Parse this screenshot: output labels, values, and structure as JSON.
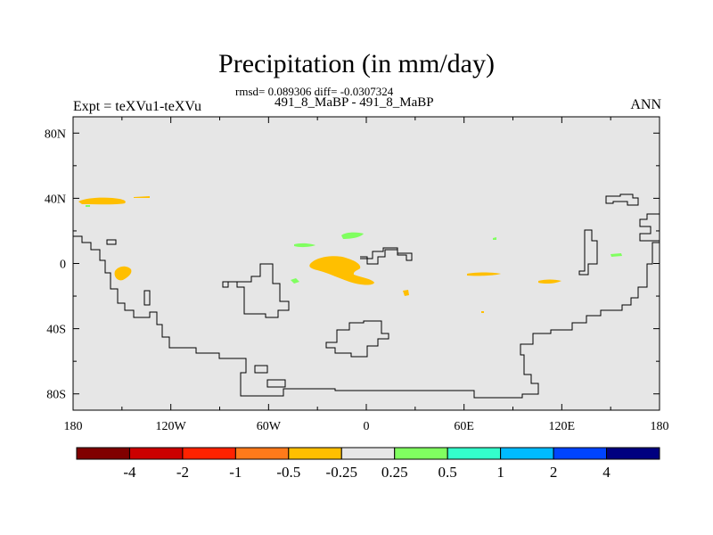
{
  "title": "Precipitation (in mm/day)",
  "stats": "rmsd= 0.089306 diff= -0.0307324",
  "subtitle": "491_8_MaBP - 491_8_MaBP",
  "experiment": "Expt = teXVu1-teXVu",
  "season": "ANN",
  "colors": {
    "land_background": "#e6e6e6",
    "orange_anomaly": "#ffbf00",
    "green_anomaly": "#80ff60",
    "coastline": "#000000"
  },
  "map": {
    "x_ticks": [
      {
        "lon": -180,
        "label": "180"
      },
      {
        "lon": -120,
        "label": "120W"
      },
      {
        "lon": -60,
        "label": "60W"
      },
      {
        "lon": 0,
        "label": "0"
      },
      {
        "lon": 60,
        "label": "60E"
      },
      {
        "lon": 120,
        "label": "120E"
      },
      {
        "lon": 180,
        "label": "180"
      }
    ],
    "y_ticks": [
      {
        "lat": 80,
        "label": "80N"
      },
      {
        "lat": 40,
        "label": "40N"
      },
      {
        "lat": 0,
        "label": "0"
      },
      {
        "lat": -40,
        "label": "40S"
      },
      {
        "lat": -80,
        "label": "80S"
      }
    ],
    "lon_range": [
      -180,
      180
    ],
    "lat_range": [
      -90,
      90
    ]
  },
  "colorbar": {
    "colors": [
      "#800000",
      "#cc0000",
      "#ff2200",
      "#ff7a1a",
      "#ffbf00",
      "#e6e6e6",
      "#80ff60",
      "#33ffcc",
      "#00bbff",
      "#0044ff",
      "#000080"
    ],
    "labels": [
      "-4",
      "-2",
      "-1",
      "-0.5",
      "-0.25",
      "0.25",
      "0.5",
      "1",
      "2",
      "4"
    ]
  }
}
